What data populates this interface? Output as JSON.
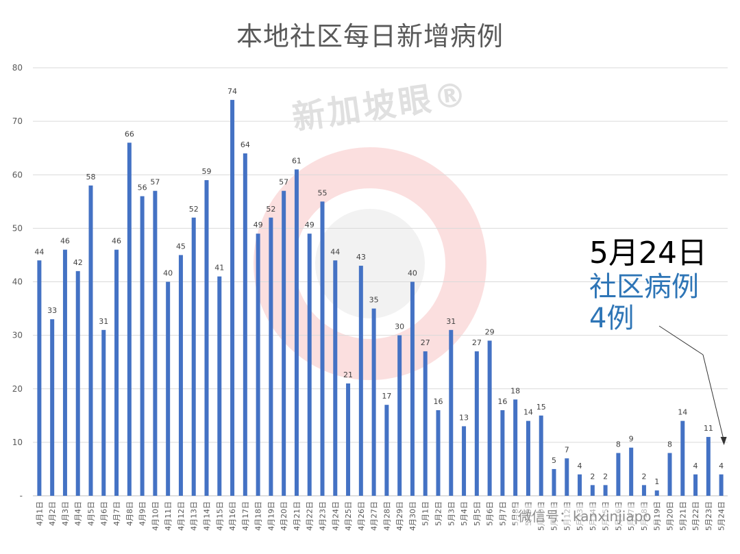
{
  "watermark": "新加坡眼®",
  "wechat_watermark": "微信号：kanxinjiapo",
  "annotation": {
    "date": "5月24日",
    "line1": "社区病例",
    "line2": "4例"
  },
  "colors": {
    "bar": "#4472C4",
    "grid": "#d9d9d9",
    "axis_text": "#595959",
    "annotation_blue": "#2E75B6",
    "watermark_red": "#f8c4c4"
  },
  "chart_data": {
    "type": "bar",
    "title": "本地社区每日新增病例",
    "xlabel": "",
    "ylabel": "",
    "ylim": [
      0,
      80
    ],
    "yticks": [
      "-",
      "10",
      "20",
      "30",
      "40",
      "50",
      "60",
      "70",
      "80"
    ],
    "grid": true,
    "data_labels": true,
    "categories": [
      "4月1日",
      "4月2日",
      "4月3日",
      "4月4日",
      "4月5日",
      "4月6日",
      "4月7日",
      "4月8日",
      "4月9日",
      "4月10日",
      "4月11日",
      "4月12日",
      "4月13日",
      "4月14日",
      "4月15日",
      "4月16日",
      "4月17日",
      "4月18日",
      "4月19日",
      "4月20日",
      "4月21日",
      "4月22日",
      "4月23日",
      "4月24日",
      "4月25日",
      "4月26日",
      "4月27日",
      "4月28日",
      "4月29日",
      "4月30日",
      "5月1日",
      "5月2日",
      "5月3日",
      "5月4日",
      "5月5日",
      "5月6日",
      "5月7日",
      "5月8日",
      "5月9日",
      "5月10日",
      "5月11日",
      "5月12日",
      "5月13日",
      "5月14日",
      "5月15日",
      "5月16日",
      "5月17日",
      "5月18日",
      "5月19日",
      "5月20日",
      "5月21日",
      "5月22日",
      "5月23日",
      "5月24日"
    ],
    "values": [
      44,
      33,
      46,
      42,
      58,
      31,
      46,
      66,
      56,
      57,
      40,
      45,
      52,
      59,
      41,
      74,
      64,
      49,
      52,
      57,
      61,
      49,
      55,
      44,
      21,
      43,
      35,
      17,
      30,
      40,
      27,
      16,
      31,
      13,
      27,
      29,
      16,
      18,
      14,
      15,
      5,
      7,
      4,
      2,
      2,
      8,
      9,
      2,
      1,
      8,
      14,
      4,
      11,
      4
    ]
  }
}
